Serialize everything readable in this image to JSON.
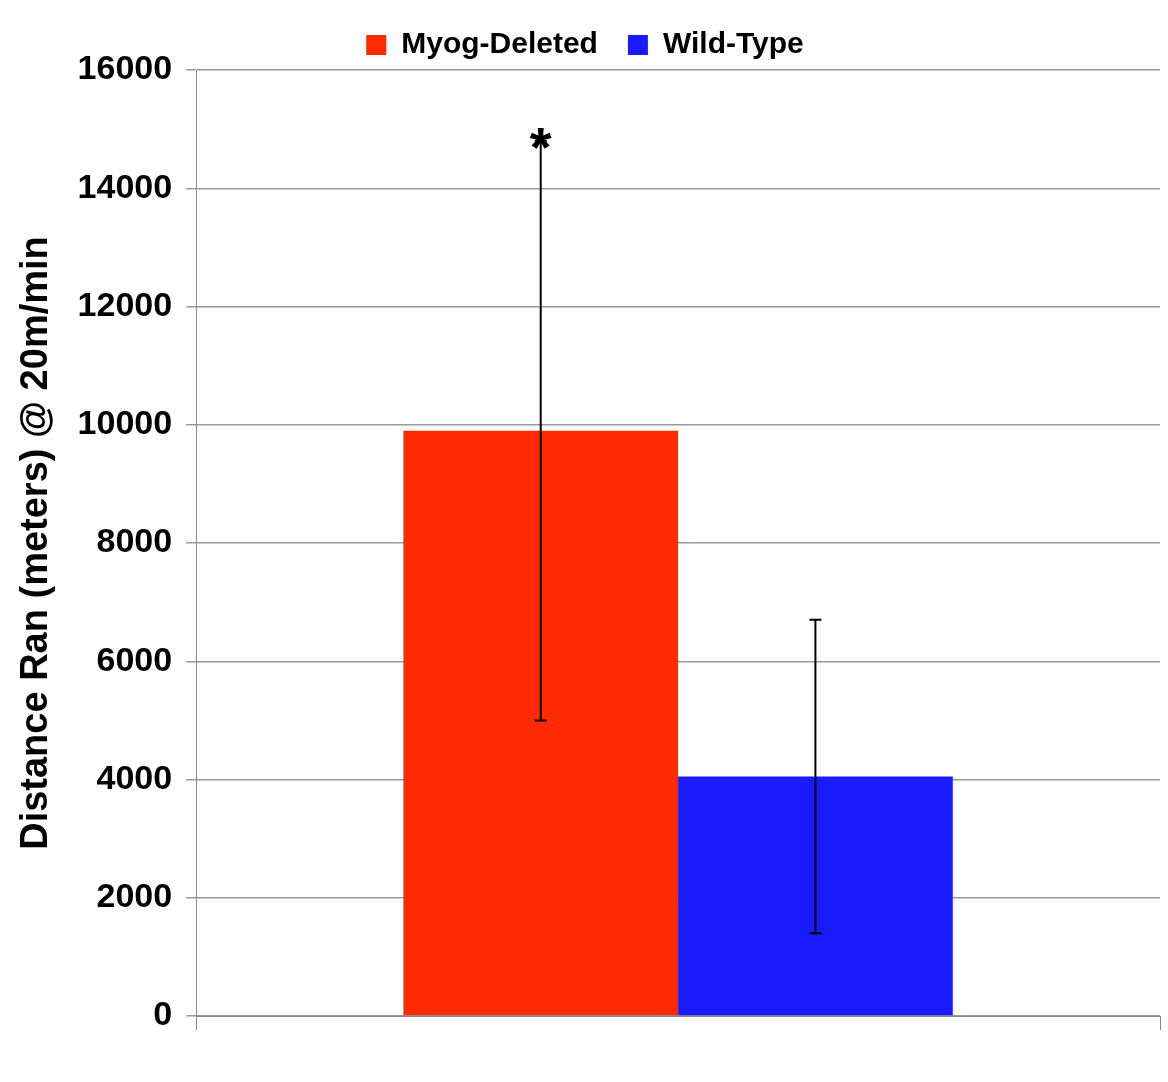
{
  "chart_data": {
    "type": "bar",
    "ylabel": "Distance Ran (meters) @ 20m/min",
    "categories": [
      null
    ],
    "series": [
      {
        "name": "Myog-Deleted",
        "color": "#ff2a00",
        "values": [
          9900
        ],
        "errors": [
          4900
        ]
      },
      {
        "name": "Wild-Type",
        "color": "#1a1aff",
        "values": [
          4050
        ],
        "errors": [
          2650
        ]
      }
    ],
    "ylim": [
      0,
      16000
    ],
    "yticks": [
      0,
      2000,
      4000,
      6000,
      8000,
      10000,
      12000,
      14000,
      16000
    ],
    "grid": "y",
    "legend": "top",
    "annotations": [
      {
        "text": "*",
        "y": 14800
      }
    ]
  }
}
